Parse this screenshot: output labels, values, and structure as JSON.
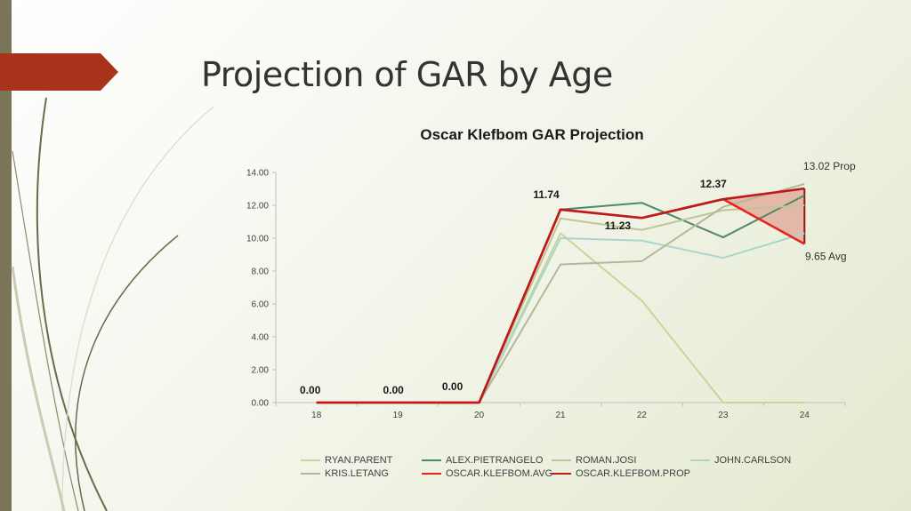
{
  "slide": {
    "title": "Projection of GAR by Age",
    "accent_color": "#a8321a",
    "strip_color": "#7a7458"
  },
  "chart_data": {
    "type": "line",
    "title": "Oscar Klefbom GAR Projection",
    "xlabel": "",
    "ylabel": "",
    "categories": [
      "18",
      "19",
      "20",
      "21",
      "22",
      "23",
      "24"
    ],
    "ylim": [
      0,
      14
    ],
    "yticks": [
      "0.00",
      "2.00",
      "4.00",
      "6.00",
      "8.00",
      "10.00",
      "12.00",
      "14.00"
    ],
    "grid": false,
    "legend_position": "bottom",
    "series": [
      {
        "name": "RYAN.PARENT",
        "color": "#c9d59a",
        "values": [
          0,
          0,
          0,
          10.3,
          6.2,
          0,
          0
        ]
      },
      {
        "name": "ALEX.PIETRANGELO",
        "color": "#4f8a68",
        "values": [
          0,
          0,
          0,
          11.74,
          12.15,
          10.05,
          12.6
        ]
      },
      {
        "name": "ROMAN.JOSI",
        "color": "#bfc596",
        "values": [
          0,
          0,
          0,
          11.2,
          10.5,
          11.7,
          12.0
        ]
      },
      {
        "name": "JOHN.CARLSON",
        "color": "#a9d6cc",
        "values": [
          0,
          0,
          0,
          10.0,
          9.85,
          8.8,
          10.3
        ]
      },
      {
        "name": "KRIS.LETANG",
        "color": "#b4b896",
        "values": [
          0,
          0,
          0,
          8.4,
          8.6,
          11.9,
          13.3
        ]
      },
      {
        "name": "OSCAR.KLEFBOM.AVG",
        "color": "#e8251c",
        "values": [
          0,
          0,
          0,
          11.74,
          11.23,
          12.37,
          9.65
        ]
      },
      {
        "name": "OSCAR.KLEFBOM.PROP",
        "color": "#c0191a",
        "values": [
          0,
          0,
          0,
          11.74,
          11.23,
          12.37,
          13.02
        ]
      }
    ],
    "data_labels": [
      {
        "text": "0.00",
        "x": "18",
        "y": 0
      },
      {
        "text": "0.00",
        "x": "19",
        "y": 0
      },
      {
        "text": "0.00",
        "x": "20",
        "y": 0
      },
      {
        "text": "11.74",
        "x": "21",
        "y": 11.74
      },
      {
        "text": "11.23",
        "x": "22",
        "y": 11.23
      },
      {
        "text": "12.37",
        "x": "23",
        "y": 12.37
      }
    ],
    "annotations": [
      {
        "text": "13.02 Prop",
        "x": "24",
        "y": 13.02
      },
      {
        "text": "9.65 Avg",
        "x": "24",
        "y": 9.65
      }
    ],
    "shaded_region": {
      "color": "#e2a595",
      "edge_color": "#8b1a12"
    }
  }
}
